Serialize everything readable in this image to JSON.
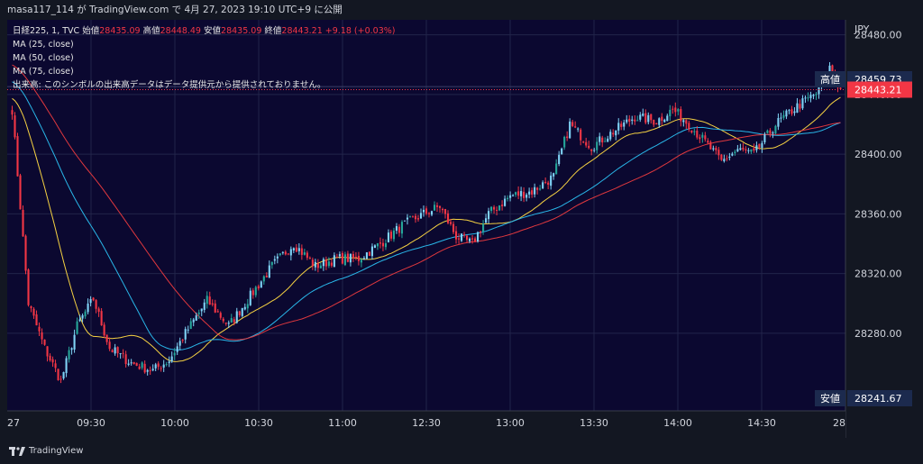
{
  "header": {
    "publisher": "masa117_114 が TradingView.com で 4月 27, 2023 19:10 UTC+9 に公開"
  },
  "legend": {
    "symbol": "日経225, 1, TVC",
    "open_label": "始値",
    "open": "28435.09",
    "high_label": "高値",
    "high": "28448.49",
    "low_label": "安値",
    "low": "28435.09",
    "close_label": "終値",
    "close": "28443.21",
    "change": "+9.18 (+0.03%)",
    "ma25": "MA (25, close)",
    "ma50": "MA (50, close)",
    "ma75": "MA (75, close)",
    "volume_note": "出来高: このシンボルの出来高データはデータ提供元から提供されておりません。"
  },
  "axis": {
    "currency": "JPY",
    "high_tag_label": "高値",
    "high_tag_value": "28459.73",
    "last_price": "28443.21",
    "low_tag_label": "安値",
    "low_tag_value": "28241.67"
  },
  "brand": {
    "name": "TradingView"
  },
  "colors": {
    "up": "#26a69a",
    "up_light": "#7fd3f5",
    "down": "#f23645",
    "ma25": "#f5d142",
    "ma50": "#29b6e8",
    "ma75": "#e0383e",
    "background": "#0b0830",
    "tag_bg": "#1c2a4e",
    "last_bg": "#f23645"
  },
  "chart_data": {
    "type": "candlestick",
    "symbol": "日経225",
    "interval": "1",
    "source": "TVC",
    "y_ticks": [
      28480,
      28440,
      28400,
      28360,
      28320,
      28280
    ],
    "y_range": [
      28228,
      28490
    ],
    "x_ticks": [
      "27",
      "09:30",
      "10:00",
      "10:30",
      "11:00",
      "12:30",
      "13:00",
      "13:30",
      "14:00",
      "14:30",
      "28"
    ],
    "price_key_points": [
      [
        0,
        28430
      ],
      [
        6,
        28300
      ],
      [
        12,
        28270
      ],
      [
        18,
        28248
      ],
      [
        24,
        28285
      ],
      [
        30,
        28303
      ],
      [
        36,
        28270
      ],
      [
        44,
        28260
      ],
      [
        52,
        28255
      ],
      [
        58,
        28262
      ],
      [
        64,
        28280
      ],
      [
        72,
        28302
      ],
      [
        80,
        28285
      ],
      [
        88,
        28305
      ],
      [
        96,
        28325
      ],
      [
        104,
        28340
      ],
      [
        112,
        28325
      ],
      [
        120,
        28330
      ],
      [
        128,
        28330
      ],
      [
        136,
        28340
      ],
      [
        144,
        28352
      ],
      [
        152,
        28360
      ],
      [
        158,
        28365
      ],
      [
        164,
        28345
      ],
      [
        170,
        28340
      ],
      [
        176,
        28360
      ],
      [
        184,
        28372
      ],
      [
        192,
        28375
      ],
      [
        200,
        28385
      ],
      [
        206,
        28420
      ],
      [
        214,
        28405
      ],
      [
        222,
        28415
      ],
      [
        230,
        28425
      ],
      [
        238,
        28422
      ],
      [
        244,
        28430
      ],
      [
        250,
        28420
      ],
      [
        256,
        28408
      ],
      [
        262,
        28395
      ],
      [
        268,
        28403
      ],
      [
        274,
        28400
      ],
      [
        282,
        28420
      ],
      [
        290,
        28432
      ],
      [
        298,
        28442
      ],
      [
        302,
        28458
      ],
      [
        306,
        28443
      ]
    ],
    "moving_averages": [
      {
        "name": "MA (25, close)",
        "period": 25
      },
      {
        "name": "MA (50, close)",
        "period": 50
      },
      {
        "name": "MA (75, close)",
        "period": 75
      }
    ],
    "high": 28459.73,
    "low": 28241.67,
    "last": 28443.21
  }
}
